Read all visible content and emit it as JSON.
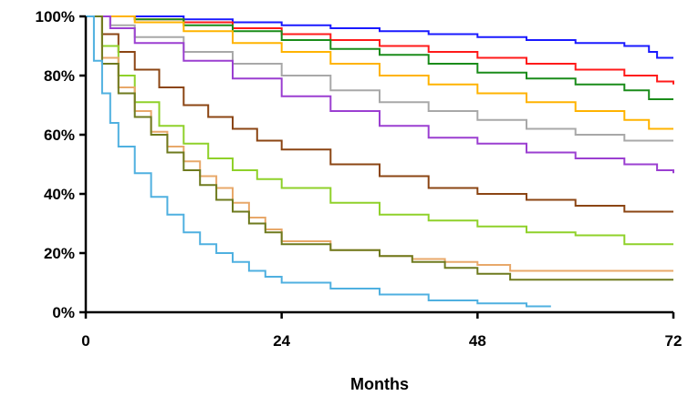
{
  "chart_data": {
    "type": "line",
    "step": true,
    "title": "",
    "xlabel": "Months",
    "ylabel": "",
    "xlim": [
      0,
      72
    ],
    "ylim": [
      0,
      100
    ],
    "xticks": [
      0,
      24,
      48,
      72
    ],
    "yticks": [
      0,
      20,
      40,
      60,
      80,
      100
    ],
    "xtick_labels": [
      "0",
      "24",
      "48",
      "72"
    ],
    "ytick_labels": [
      "0%",
      "20%",
      "40%",
      "60%",
      "80%",
      "100%"
    ],
    "grid": false,
    "legend": "none",
    "series": [
      {
        "color": "#1a1aff",
        "x": [
          0,
          6,
          12,
          18,
          24,
          30,
          36,
          42,
          48,
          54,
          60,
          66,
          69,
          70,
          72
        ],
        "y": [
          100,
          100,
          99,
          98,
          97,
          96,
          95,
          94,
          93,
          92,
          91,
          90,
          88,
          86,
          86
        ]
      },
      {
        "color": "#ff1a1a",
        "x": [
          0,
          6,
          12,
          18,
          24,
          30,
          36,
          42,
          48,
          54,
          60,
          66,
          70,
          72
        ],
        "y": [
          100,
          99,
          98,
          96,
          94,
          92,
          90,
          88,
          86,
          84,
          82,
          80,
          78,
          77
        ]
      },
      {
        "color": "#1a8c1a",
        "x": [
          0,
          6,
          12,
          18,
          24,
          30,
          36,
          42,
          48,
          54,
          60,
          66,
          69,
          72
        ],
        "y": [
          100,
          99,
          97,
          95,
          92,
          89,
          87,
          84,
          81,
          79,
          77,
          75,
          72,
          72
        ]
      },
      {
        "color": "#ffb300",
        "x": [
          0,
          6,
          12,
          18,
          24,
          30,
          36,
          42,
          48,
          54,
          60,
          66,
          69,
          72
        ],
        "y": [
          100,
          98,
          95,
          91,
          88,
          84,
          80,
          77,
          74,
          71,
          68,
          65,
          62,
          62
        ]
      },
      {
        "color": "#a8a8a8",
        "x": [
          0,
          3,
          6,
          12,
          18,
          24,
          30,
          36,
          42,
          48,
          54,
          60,
          66,
          72
        ],
        "y": [
          100,
          97,
          93,
          88,
          84,
          80,
          75,
          71,
          68,
          65,
          62,
          60,
          58,
          58
        ]
      },
      {
        "color": "#9b3fd1",
        "x": [
          0,
          3,
          6,
          12,
          18,
          24,
          30,
          36,
          42,
          48,
          54,
          60,
          66,
          70,
          72
        ],
        "y": [
          100,
          96,
          91,
          85,
          79,
          73,
          68,
          63,
          59,
          57,
          54,
          52,
          50,
          48,
          47
        ]
      },
      {
        "color": "#8b4513",
        "x": [
          0,
          2,
          4,
          6,
          9,
          12,
          15,
          18,
          21,
          24,
          30,
          36,
          42,
          48,
          54,
          60,
          66,
          72
        ],
        "y": [
          100,
          94,
          88,
          82,
          76,
          70,
          66,
          62,
          58,
          55,
          50,
          46,
          42,
          40,
          38,
          36,
          34,
          34
        ]
      },
      {
        "color": "#8fd12a",
        "x": [
          0,
          2,
          4,
          6,
          9,
          12,
          15,
          18,
          21,
          24,
          30,
          36,
          42,
          48,
          54,
          60,
          66,
          72
        ],
        "y": [
          100,
          90,
          80,
          71,
          63,
          57,
          52,
          48,
          45,
          42,
          37,
          33,
          31,
          29,
          27,
          26,
          23,
          23
        ]
      },
      {
        "color": "#e8a86a",
        "x": [
          0,
          2,
          4,
          6,
          8,
          10,
          12,
          14,
          16,
          18,
          20,
          22,
          24,
          30,
          36,
          40,
          44,
          48,
          52,
          72
        ],
        "y": [
          100,
          86,
          76,
          68,
          61,
          56,
          51,
          46,
          42,
          37,
          32,
          28,
          24,
          21,
          19,
          18,
          17,
          16,
          14,
          14
        ]
      },
      {
        "color": "#6e7a1e",
        "x": [
          0,
          2,
          4,
          6,
          8,
          10,
          12,
          14,
          16,
          18,
          20,
          22,
          24,
          30,
          36,
          40,
          44,
          48,
          52,
          72
        ],
        "y": [
          100,
          84,
          74,
          66,
          60,
          54,
          48,
          43,
          38,
          34,
          30,
          27,
          23,
          21,
          19,
          17,
          15,
          13,
          11,
          11
        ]
      },
      {
        "color": "#4fb0e0",
        "x": [
          0,
          1,
          2,
          3,
          4,
          6,
          8,
          10,
          12,
          14,
          16,
          18,
          20,
          22,
          24,
          30,
          36,
          42,
          48,
          54,
          57
        ],
        "y": [
          100,
          85,
          74,
          64,
          56,
          47,
          39,
          33,
          27,
          23,
          20,
          17,
          14,
          12,
          10,
          8,
          6,
          4,
          3,
          2,
          2
        ]
      }
    ]
  }
}
